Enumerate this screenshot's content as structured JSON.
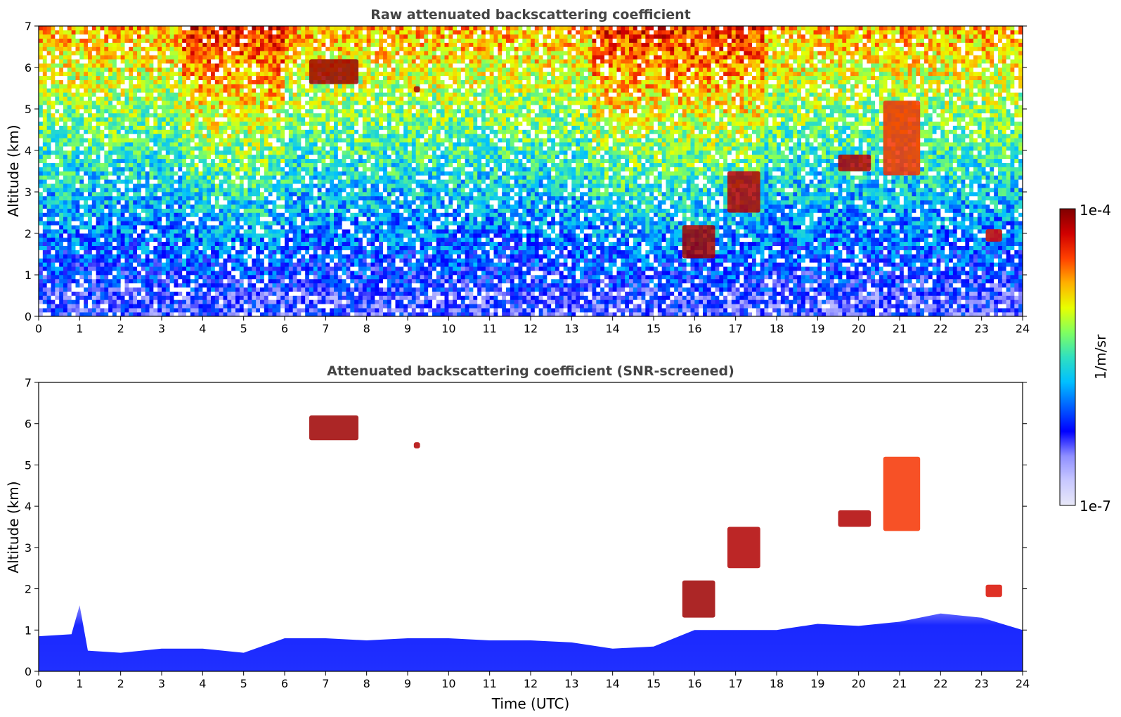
{
  "chart_data": [
    {
      "type": "heatmap",
      "title": "Raw attenuated backscattering coefficient",
      "xlabel": "",
      "ylabel": "Altitude (km)",
      "xlim": [
        0,
        24
      ],
      "ylim": [
        0,
        7
      ],
      "xticks": [
        "0",
        "1",
        "2",
        "3",
        "4",
        "5",
        "6",
        "7",
        "8",
        "9",
        "10",
        "11",
        "12",
        "13",
        "14",
        "15",
        "16",
        "17",
        "18",
        "19",
        "20",
        "21",
        "22",
        "23",
        "24"
      ],
      "yticks": [
        "0",
        "1",
        "2",
        "3",
        "4",
        "5",
        "6",
        "7"
      ],
      "x_units": "hours UTC",
      "y_units": "km",
      "features": [
        {
          "kind": "surface_layer",
          "x": [
            0,
            24
          ],
          "y_top": 0.6,
          "level": 0.2
        },
        {
          "kind": "cloud",
          "x": [
            6.6,
            7.8
          ],
          "y": [
            5.6,
            6.2
          ],
          "level": 0.97
        },
        {
          "kind": "cloud",
          "x": [
            9.15,
            9.3
          ],
          "y": [
            5.4,
            5.55
          ],
          "level": 0.95
        },
        {
          "kind": "cloud",
          "x": [
            15.7,
            16.5
          ],
          "y": [
            1.4,
            2.2
          ],
          "level": 0.97
        },
        {
          "kind": "cloud",
          "x": [
            16.8,
            17.6
          ],
          "y": [
            2.5,
            3.5
          ],
          "level": 0.95
        },
        {
          "kind": "cloud",
          "x": [
            19.5,
            20.3
          ],
          "y": [
            3.5,
            3.9
          ],
          "level": 0.95
        },
        {
          "kind": "cloud",
          "x": [
            20.6,
            21.5
          ],
          "y": [
            3.4,
            5.2
          ],
          "level": 0.85
        },
        {
          "kind": "cloud",
          "x": [
            23.1,
            23.5
          ],
          "y": [
            1.8,
            2.1
          ],
          "level": 0.9
        }
      ]
    },
    {
      "type": "heatmap",
      "title": "Attenuated backscattering coefficient (SNR-screened)",
      "xlabel": "Time (UTC)",
      "ylabel": "Altitude (km)",
      "xlim": [
        0,
        24
      ],
      "ylim": [
        0,
        7
      ],
      "xticks": [
        "0",
        "1",
        "2",
        "3",
        "4",
        "5",
        "6",
        "7",
        "8",
        "9",
        "10",
        "11",
        "12",
        "13",
        "14",
        "15",
        "16",
        "17",
        "18",
        "19",
        "20",
        "21",
        "22",
        "23",
        "24"
      ],
      "yticks": [
        "0",
        "1",
        "2",
        "3",
        "4",
        "5",
        "6",
        "7"
      ],
      "x_units": "hours UTC",
      "y_units": "km",
      "boundary_layer_top_km": [
        [
          0,
          0.85
        ],
        [
          0.8,
          0.9
        ],
        [
          1.0,
          1.6
        ],
        [
          1.2,
          0.5
        ],
        [
          2,
          0.45
        ],
        [
          3,
          0.55
        ],
        [
          4,
          0.55
        ],
        [
          5,
          0.45
        ],
        [
          6,
          0.8
        ],
        [
          7,
          0.8
        ],
        [
          8,
          0.75
        ],
        [
          9,
          0.8
        ],
        [
          10,
          0.8
        ],
        [
          11,
          0.75
        ],
        [
          12,
          0.75
        ],
        [
          13,
          0.7
        ],
        [
          14,
          0.55
        ],
        [
          15,
          0.6
        ],
        [
          16,
          1.0
        ],
        [
          17,
          1.0
        ],
        [
          18,
          1.0
        ],
        [
          19,
          1.15
        ],
        [
          20,
          1.1
        ],
        [
          21,
          1.2
        ],
        [
          22,
          1.4
        ],
        [
          23,
          1.3
        ],
        [
          24,
          1.0
        ]
      ],
      "features": [
        {
          "kind": "cloud",
          "x": [
            6.6,
            7.8
          ],
          "y": [
            5.6,
            6.2
          ],
          "level": 0.97
        },
        {
          "kind": "cloud",
          "x": [
            9.15,
            9.3
          ],
          "y": [
            5.4,
            5.55
          ],
          "level": 0.95
        },
        {
          "kind": "cloud",
          "x": [
            15.7,
            16.5
          ],
          "y": [
            1.3,
            2.2
          ],
          "level": 0.97
        },
        {
          "kind": "cloud",
          "x": [
            16.8,
            17.6
          ],
          "y": [
            2.5,
            3.5
          ],
          "level": 0.95
        },
        {
          "kind": "cloud",
          "x": [
            19.5,
            20.3
          ],
          "y": [
            3.5,
            3.9
          ],
          "level": 0.95
        },
        {
          "kind": "cloud",
          "x": [
            20.6,
            21.5
          ],
          "y": [
            3.4,
            5.2
          ],
          "level": 0.85
        },
        {
          "kind": "cloud",
          "x": [
            23.1,
            23.5
          ],
          "y": [
            1.8,
            2.1
          ],
          "level": 0.9
        }
      ]
    }
  ],
  "colorbar": {
    "label": "1/m/sr",
    "min_label": "1e-7",
    "max_label": "1e-4",
    "min_value": 1e-07,
    "max_value": 0.0001,
    "scale": "log",
    "colors": [
      "#e8e8f8",
      "#c8c8ff",
      "#8f8fff",
      "#0000ff",
      "#0060ff",
      "#00c0ff",
      "#30e0c0",
      "#80ff60",
      "#e8ff00",
      "#ffb000",
      "#ff4000",
      "#d00000",
      "#800000"
    ]
  },
  "colors": {
    "title_color": "#444444",
    "axis_color": "#000000"
  }
}
